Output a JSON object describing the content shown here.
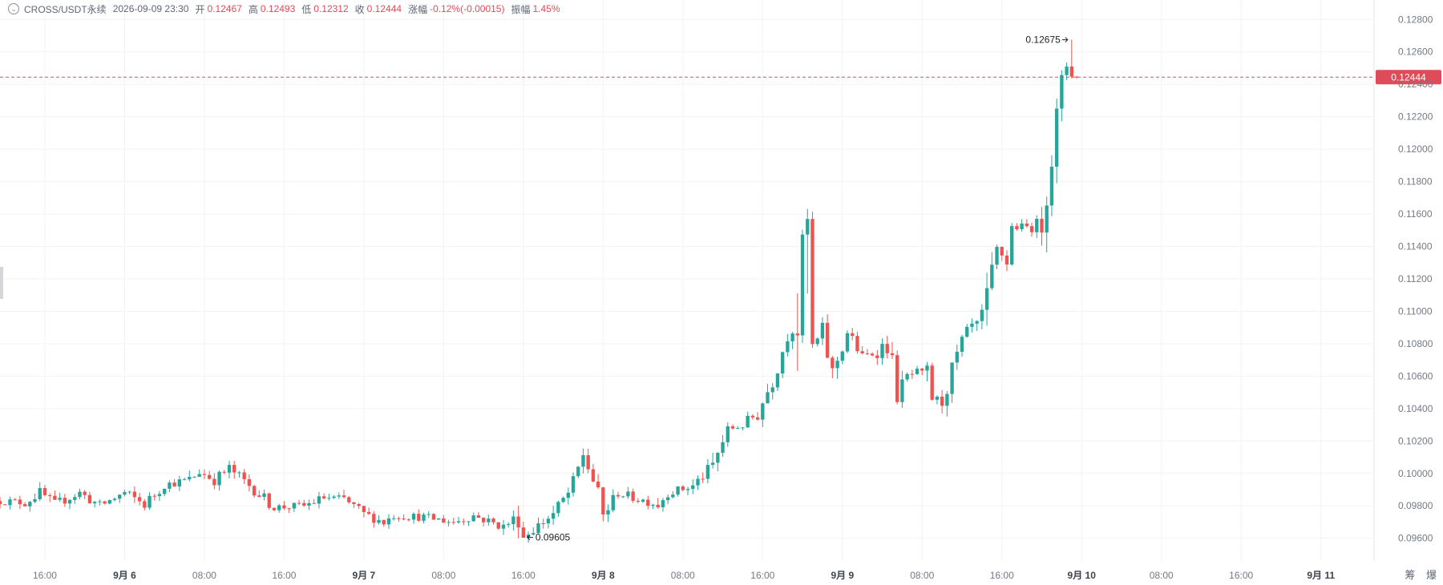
{
  "legend": {
    "symbol": "CROSS/USDT永续",
    "datetime": "2026-09-09 23:30",
    "open_label": "开",
    "open": "0.12467",
    "high_label": "高",
    "high": "0.12493",
    "low_label": "低",
    "low": "0.12312",
    "close_label": "收",
    "close": "0.12444",
    "change_label": "涨幅",
    "change": "-0.12%(-0.00015)",
    "amplitude_label": "振幅",
    "amplitude": "1.45%"
  },
  "corner": {
    "label1": "筹",
    "label2": "爆"
  },
  "colors": {
    "up": "#26a69a",
    "down": "#ef5350",
    "price_line": "#e04b5a",
    "grid": "#f2f3f5",
    "axis_text": "#737985"
  },
  "chart_data": {
    "type": "candlestick",
    "y_range": [
      0.0946,
      0.1292
    ],
    "y_ticks": [
      "0.12800",
      "0.12600",
      "0.12400",
      "0.12200",
      "0.12000",
      "0.11800",
      "0.11600",
      "0.11400",
      "0.11200",
      "0.11000",
      "0.10800",
      "0.10600",
      "0.10400",
      "0.10200",
      "0.10000",
      "0.09800",
      "0.09600"
    ],
    "x_range": [
      "2026-09-05 11:30",
      "2026-09-11 05:20"
    ],
    "x_ticks": [
      {
        "time": "2026-09-05 16:00",
        "label": "16:00",
        "bold": false
      },
      {
        "time": "2026-09-06 00:00",
        "label": "9月 6",
        "bold": true
      },
      {
        "time": "2026-09-06 08:00",
        "label": "08:00",
        "bold": false
      },
      {
        "time": "2026-09-06 16:00",
        "label": "16:00",
        "bold": false
      },
      {
        "time": "2026-09-07 00:00",
        "label": "9月 7",
        "bold": true
      },
      {
        "time": "2026-09-07 08:00",
        "label": "08:00",
        "bold": false
      },
      {
        "time": "2026-09-07 16:00",
        "label": "16:00",
        "bold": false
      },
      {
        "time": "2026-09-08 00:00",
        "label": "9月 8",
        "bold": true
      },
      {
        "time": "2026-09-08 08:00",
        "label": "08:00",
        "bold": false
      },
      {
        "time": "2026-09-08 16:00",
        "label": "16:00",
        "bold": false
      },
      {
        "time": "2026-09-09 00:00",
        "label": "9月 9",
        "bold": true
      },
      {
        "time": "2026-09-09 08:00",
        "label": "08:00",
        "bold": false
      },
      {
        "time": "2026-09-09 16:00",
        "label": "16:00",
        "bold": false
      },
      {
        "time": "2026-09-10 00:00",
        "label": "9月 10",
        "bold": true
      },
      {
        "time": "2026-09-10 08:00",
        "label": "08:00",
        "bold": false
      },
      {
        "time": "2026-09-10 16:00",
        "label": "16:00",
        "bold": false
      },
      {
        "time": "2026-09-11 00:00",
        "label": "9月 11",
        "bold": true
      }
    ],
    "candle_interval_minutes": 30,
    "price_path": [
      [
        "2026-09-05 11:30",
        0.0983
      ],
      [
        "2026-09-05 14:00",
        0.0982
      ],
      [
        "2026-09-05 15:30",
        0.0988
      ],
      [
        "2026-09-05 17:00",
        0.0981
      ],
      [
        "2026-09-05 19:30",
        0.0988
      ],
      [
        "2026-09-05 21:30",
        0.098
      ],
      [
        "2026-09-06 00:00",
        0.0988
      ],
      [
        "2026-09-06 02:00",
        0.0981
      ],
      [
        "2026-09-06 04:00",
        0.0993
      ],
      [
        "2026-09-06 06:30",
        0.0996
      ],
      [
        "2026-09-06 07:30",
        0.1001
      ],
      [
        "2026-09-06 09:00",
        0.0996
      ],
      [
        "2026-09-06 10:30",
        0.1003
      ],
      [
        "2026-09-06 13:00",
        0.099
      ],
      [
        "2026-09-06 15:00",
        0.0979
      ],
      [
        "2026-09-06 18:00",
        0.098
      ],
      [
        "2026-09-06 20:00",
        0.0985
      ],
      [
        "2026-09-06 22:00",
        0.0984
      ],
      [
        "2026-09-07 00:00",
        0.0975
      ],
      [
        "2026-09-07 02:00",
        0.097
      ],
      [
        "2026-09-07 03:00",
        0.0974
      ],
      [
        "2026-09-07 06:00",
        0.0973
      ],
      [
        "2026-09-07 09:00",
        0.097
      ],
      [
        "2026-09-07 11:00",
        0.0974
      ],
      [
        "2026-09-07 14:00",
        0.0967
      ],
      [
        "2026-09-07 15:30",
        0.0974
      ],
      [
        "2026-09-07 16:00",
        0.0961
      ],
      [
        "2026-09-07 19:00",
        0.0975
      ],
      [
        "2026-09-07 21:00",
        0.0992
      ],
      [
        "2026-09-07 22:00",
        0.1012
      ],
      [
        "2026-09-07 23:00",
        0.0996
      ],
      [
        "2026-09-08 00:00",
        0.0974
      ],
      [
        "2026-09-08 01:30",
        0.0988
      ],
      [
        "2026-09-08 03:00",
        0.0985
      ],
      [
        "2026-09-08 05:30",
        0.0981
      ],
      [
        "2026-09-08 06:30",
        0.0988
      ],
      [
        "2026-09-08 09:00",
        0.0992
      ],
      [
        "2026-09-08 11:00",
        0.1005
      ],
      [
        "2026-09-08 12:30",
        0.1027
      ],
      [
        "2026-09-08 14:00",
        0.103
      ],
      [
        "2026-09-08 15:30",
        0.1037
      ],
      [
        "2026-09-08 17:00",
        0.1058
      ],
      [
        "2026-09-08 18:30",
        0.1085
      ],
      [
        "2026-09-08 19:30",
        0.1094
      ],
      [
        "2026-09-08 20:00",
        0.1142
      ],
      [
        "2026-09-08 20:30",
        0.115
      ],
      [
        "2026-09-08 21:00",
        0.1078
      ],
      [
        "2026-09-08 22:00",
        0.1086
      ],
      [
        "2026-09-08 23:00",
        0.1062
      ],
      [
        "2026-09-09 00:30",
        0.1087
      ],
      [
        "2026-09-09 02:00",
        0.1072
      ],
      [
        "2026-09-09 03:30",
        0.1075
      ],
      [
        "2026-09-09 04:30",
        0.1082
      ],
      [
        "2026-09-09 05:30",
        0.1048
      ],
      [
        "2026-09-09 06:30",
        0.106
      ],
      [
        "2026-09-09 07:30",
        0.1062
      ],
      [
        "2026-09-09 08:30",
        0.106
      ],
      [
        "2026-09-09 09:00",
        0.1046
      ],
      [
        "2026-09-09 10:00",
        0.1045
      ],
      [
        "2026-09-09 11:00",
        0.1063
      ],
      [
        "2026-09-09 12:00",
        0.1081
      ],
      [
        "2026-09-09 13:00",
        0.1091
      ],
      [
        "2026-09-09 13:30",
        0.1089
      ],
      [
        "2026-09-09 14:30",
        0.1106
      ],
      [
        "2026-09-09 15:30",
        0.1138
      ],
      [
        "2026-09-09 16:30",
        0.1132
      ],
      [
        "2026-09-09 17:00",
        0.1152
      ],
      [
        "2026-09-09 19:00",
        0.1152
      ],
      [
        "2026-09-09 20:00",
        0.1156
      ],
      [
        "2026-09-09 21:00",
        0.1196
      ],
      [
        "2026-09-09 22:00",
        0.124
      ],
      [
        "2026-09-09 22:30",
        0.1252
      ],
      [
        "2026-09-09 23:00",
        0.1247
      ],
      [
        "2026-09-09 23:30",
        0.1244
      ]
    ],
    "last_price": "0.12444",
    "max_marker": {
      "time": "2026-09-09 23:00",
      "value": 0.12675,
      "label": "0.12675"
    },
    "min_marker": {
      "time": "2026-09-07 16:00",
      "value": 0.09605,
      "label": "0.09605"
    },
    "grid": true,
    "legend_position": "top-left"
  }
}
